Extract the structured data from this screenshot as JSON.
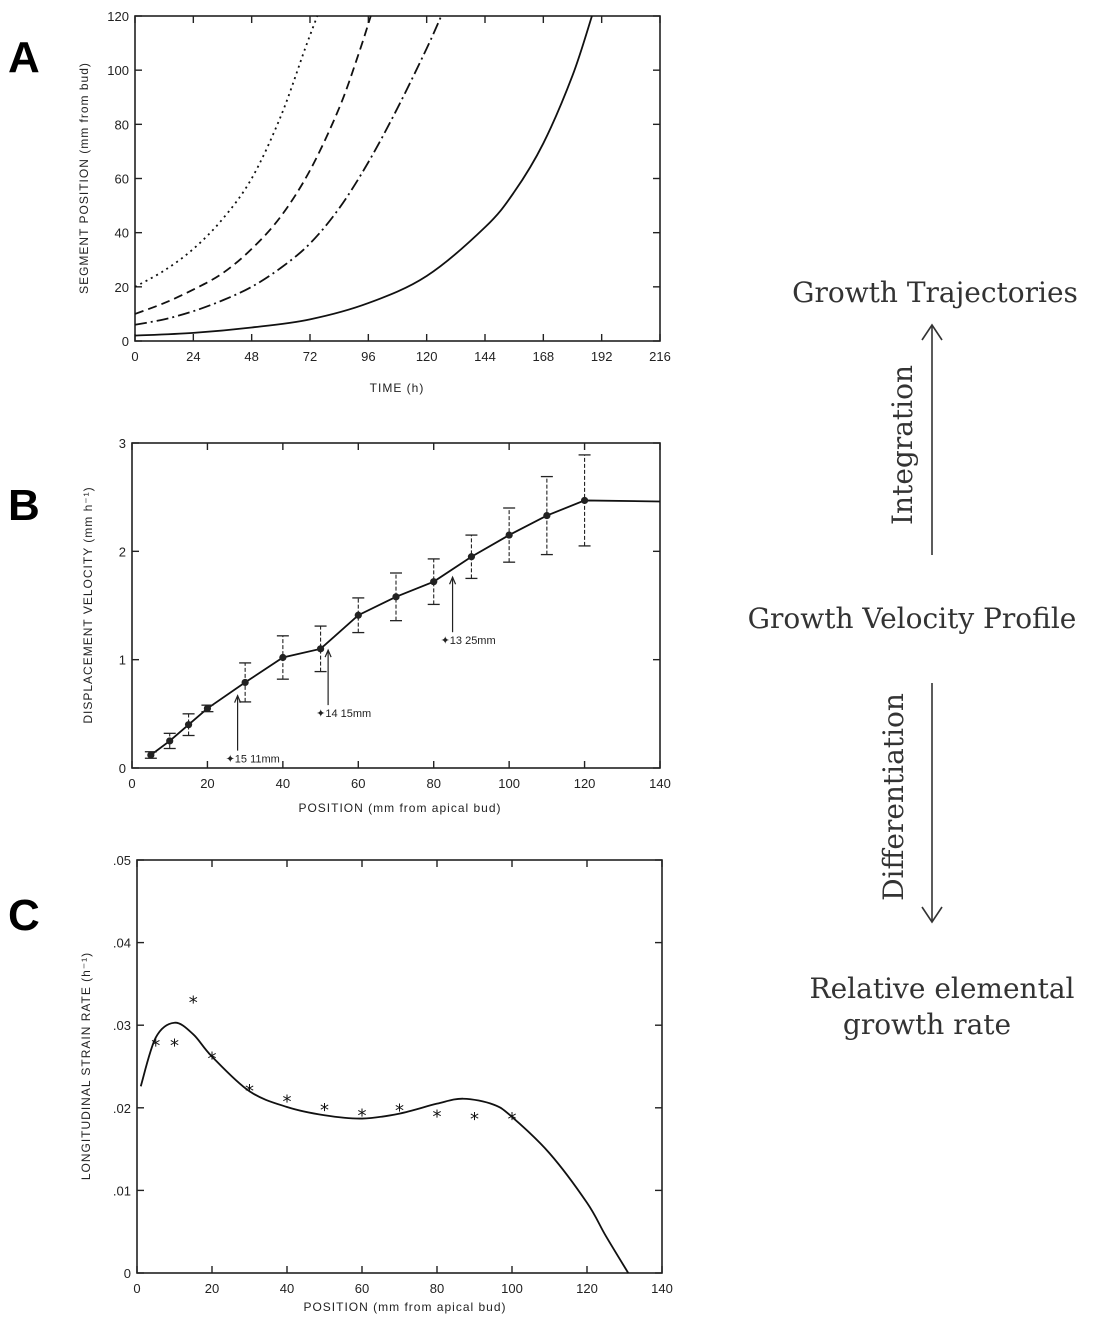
{
  "panel_letters": {
    "a": "A",
    "b": "B",
    "c": "C"
  },
  "side": {
    "top": "Growth Trajectories",
    "integration": "Integration",
    "middle": "Growth Velocity Profile",
    "differentiation": "Differentiation",
    "bottom_line1": "Relative elemental",
    "bottom_line2": "growth rate"
  },
  "chart_data": [
    {
      "panel": "A",
      "type": "line",
      "xlabel": "TIME (h)",
      "ylabel": "SEGMENT POSITION (mm from bud)",
      "xlim": [
        0,
        216
      ],
      "ylim": [
        0,
        120
      ],
      "xticks": [
        0,
        24,
        48,
        72,
        96,
        120,
        144,
        168,
        192,
        216
      ],
      "yticks": [
        0,
        20,
        40,
        60,
        80,
        100,
        120
      ],
      "grid": false,
      "series": [
        {
          "style": "dotted",
          "x": [
            0,
            12,
            24,
            36,
            48,
            60,
            70,
            75
          ],
          "y": [
            20,
            26,
            34,
            45,
            60,
            83,
            108,
            120
          ]
        },
        {
          "style": "dashed",
          "x": [
            0,
            12,
            24,
            36,
            48,
            60,
            72,
            84,
            92,
            97
          ],
          "y": [
            10,
            14,
            19,
            25,
            34,
            46,
            63,
            86,
            106,
            120
          ]
        },
        {
          "style": "dashdot",
          "x": [
            0,
            12,
            24,
            36,
            48,
            60,
            72,
            84,
            96,
            108,
            120,
            126
          ],
          "y": [
            6,
            8,
            11,
            15,
            20,
            27,
            36,
            49,
            66,
            86,
            108,
            120
          ]
        },
        {
          "style": "solid",
          "x": [
            0,
            24,
            48,
            72,
            96,
            120,
            144,
            156,
            168,
            180,
            188
          ],
          "y": [
            2,
            3,
            5,
            8,
            14,
            24,
            42,
            55,
            73,
            98,
            120
          ]
        }
      ]
    },
    {
      "panel": "B",
      "type": "line",
      "xlabel": "POSITION (mm from apical bud)",
      "ylabel": "DISPLACEMENT VELOCITY (mm h⁻¹)",
      "xlim": [
        0,
        140
      ],
      "ylim": [
        0,
        3
      ],
      "xticks": [
        0,
        20,
        40,
        60,
        80,
        100,
        120,
        140
      ],
      "yticks": [
        0,
        1,
        2,
        3
      ],
      "grid": false,
      "x": [
        5,
        10,
        15,
        20,
        30,
        40,
        50,
        60,
        70,
        80,
        90,
        100,
        110,
        120,
        140
      ],
      "y": [
        0.12,
        0.25,
        0.4,
        0.55,
        0.79,
        1.02,
        1.1,
        1.41,
        1.58,
        1.72,
        1.95,
        2.15,
        2.33,
        2.47,
        2.46
      ],
      "error": [
        0.03,
        0.07,
        0.1,
        0.03,
        0.18,
        0.2,
        0.21,
        0.16,
        0.22,
        0.21,
        0.2,
        0.25,
        0.36,
        0.42,
        null
      ],
      "annotations": [
        {
          "text": "✦15 11mm",
          "x": 28
        },
        {
          "text": "✦14 15mm",
          "x": 52
        },
        {
          "text": "✦13 25mm",
          "x": 85
        }
      ]
    },
    {
      "panel": "C",
      "type": "scatter",
      "xlabel": "POSITION (mm from apical bud)",
      "ylabel": "LONGITUDINAL STRAIN RATE (h⁻¹)",
      "xlim": [
        0,
        140
      ],
      "ylim": [
        0,
        0.05
      ],
      "xticks": [
        0,
        20,
        40,
        60,
        80,
        100,
        120,
        140
      ],
      "yticks": [
        0,
        0.01,
        0.02,
        0.03,
        0.04,
        0.05
      ],
      "ytick_labels": [
        "0",
        ".01",
        ".02",
        ".03",
        ".04",
        ".05"
      ],
      "grid": false,
      "points": {
        "x": [
          5,
          10,
          15,
          20,
          30,
          40,
          50,
          60,
          70,
          80,
          90,
          100
        ],
        "y": [
          0.0278,
          0.0278,
          0.033,
          0.0262,
          0.0223,
          0.021,
          0.02,
          0.0193,
          0.0199,
          0.0192,
          0.0189,
          0.0189
        ]
      },
      "fit": {
        "x": [
          1,
          5,
          10,
          15,
          20,
          30,
          40,
          50,
          60,
          70,
          80,
          87,
          95,
          100,
          110,
          120,
          125,
          131
        ],
        "y": [
          0.0226,
          0.0285,
          0.0303,
          0.0289,
          0.0262,
          0.022,
          0.0201,
          0.0191,
          0.0187,
          0.0193,
          0.0205,
          0.0211,
          0.0204,
          0.0189,
          0.0145,
          0.0085,
          0.0045,
          0
        ]
      },
      "marker": "*"
    }
  ]
}
